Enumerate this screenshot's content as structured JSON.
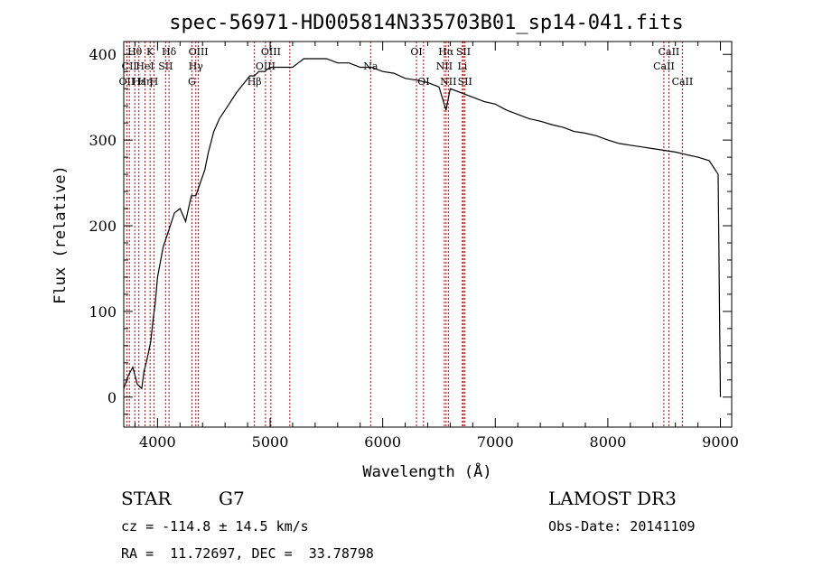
{
  "chart_data": {
    "type": "line",
    "title": "spec-56971-HD005814N335703B01_sp14-041.fits",
    "xlabel": "Wavelength (Å)",
    "ylabel": "Flux (relative)",
    "xlim": [
      3700,
      9100
    ],
    "ylim": [
      -35,
      415
    ],
    "xticks": [
      4000,
      5000,
      6000,
      7000,
      8000,
      9000
    ],
    "yticks": [
      0,
      100,
      200,
      300,
      400
    ],
    "grid": false,
    "series": [
      {
        "x": [
          3700,
          3740,
          3780,
          3820,
          3860,
          3880,
          3900,
          3940,
          3960,
          3980,
          4000,
          4050,
          4100,
          4150,
          4200,
          4250,
          4300,
          4340,
          4380,
          4420,
          4450,
          4500,
          4550,
          4600,
          4650,
          4700,
          4760,
          4820,
          4860,
          4900,
          4950,
          5000,
          5050,
          5100,
          5150,
          5200,
          5250,
          5300,
          5350,
          5400,
          5500,
          5600,
          5700,
          5800,
          5900,
          6000,
          6100,
          6200,
          6300,
          6400,
          6500,
          6563,
          6600,
          6700,
          6800,
          6900,
          7000,
          7100,
          7200,
          7300,
          7400,
          7500,
          7600,
          7700,
          7800,
          7900,
          8000,
          8100,
          8200,
          8300,
          8400,
          8500,
          8600,
          8700,
          8800,
          8900,
          8980,
          9000
        ],
        "values": [
          10,
          25,
          35,
          15,
          10,
          30,
          40,
          65,
          90,
          110,
          140,
          175,
          195,
          215,
          220,
          205,
          235,
          235,
          250,
          265,
          285,
          310,
          325,
          335,
          345,
          355,
          365,
          375,
          375,
          380,
          380,
          385,
          385,
          385,
          385,
          385,
          390,
          395,
          395,
          395,
          395,
          390,
          390,
          385,
          385,
          380,
          378,
          372,
          370,
          367,
          362,
          335,
          360,
          355,
          350,
          345,
          342,
          335,
          330,
          325,
          322,
          318,
          315,
          310,
          308,
          305,
          300,
          296,
          294,
          292,
          290,
          288,
          286,
          283,
          280,
          276,
          260,
          0
        ]
      }
    ],
    "spectral_lines": [
      {
        "label": "Hθ",
        "x": 3798,
        "row": 0
      },
      {
        "label": "K",
        "x": 3934,
        "row": 0
      },
      {
        "label": "Hδ",
        "x": 4102,
        "row": 0
      },
      {
        "label": "OIII",
        "x": 4363,
        "row": 0
      },
      {
        "label": "OIII",
        "x": 5007,
        "row": 0
      },
      {
        "label": "OI",
        "x": 6300,
        "row": 0
      },
      {
        "label": "Hα",
        "x": 6563,
        "row": 0
      },
      {
        "label": "SII",
        "x": 6717,
        "row": 0
      },
      {
        "label": "CaII",
        "x": 8542,
        "row": 0
      },
      {
        "label": "CII",
        "x": 3750,
        "row": 1
      },
      {
        "label": "HeI",
        "x": 3889,
        "row": 1
      },
      {
        "label": "SII",
        "x": 4072,
        "row": 1
      },
      {
        "label": "Hγ",
        "x": 4340,
        "row": 1
      },
      {
        "label": "OIII",
        "x": 4959,
        "row": 1
      },
      {
        "label": "Na",
        "x": 5893,
        "row": 1
      },
      {
        "label": "NII",
        "x": 6548,
        "row": 1
      },
      {
        "label": "Li",
        "x": 6708,
        "row": 1
      },
      {
        "label": "CaII",
        "x": 8498,
        "row": 1
      },
      {
        "label": "OII",
        "x": 3727,
        "row": 2
      },
      {
        "label": "Hε",
        "x": 3835,
        "row": 2
      },
      {
        "label": "Hη",
        "x": 3889,
        "row": 2
      },
      {
        "label": "H",
        "x": 3968,
        "row": 2
      },
      {
        "label": "G",
        "x": 4305,
        "row": 2
      },
      {
        "label": "Hβ",
        "x": 4861,
        "row": 2
      },
      {
        "label": "OI",
        "x": 6363,
        "row": 2
      },
      {
        "label": "NII",
        "x": 6583,
        "row": 2
      },
      {
        "label": "SII",
        "x": 6731,
        "row": 2
      },
      {
        "label": "CaII",
        "x": 8662,
        "row": 2
      }
    ],
    "dashed_lines_x": [
      3727,
      3750,
      3798,
      3835,
      3889,
      3934,
      3968,
      4072,
      4102,
      4305,
      4340,
      4363,
      4861,
      4959,
      5007,
      5175,
      5893,
      6300,
      6363,
      6548,
      6563,
      6583,
      6708,
      6717,
      6731,
      8498,
      8542,
      8662
    ],
    "line_color": "#000000",
    "marker_color": "#cc0000"
  },
  "info": {
    "object_type": "STAR",
    "subclass": "G7",
    "survey": "LAMOST DR3",
    "redshift": "cz = -114.8 ± 14.5 km/s",
    "obs_date": "Obs-Date: 20141109",
    "coords": "RA =  11.72697, DEC =  33.78798"
  }
}
